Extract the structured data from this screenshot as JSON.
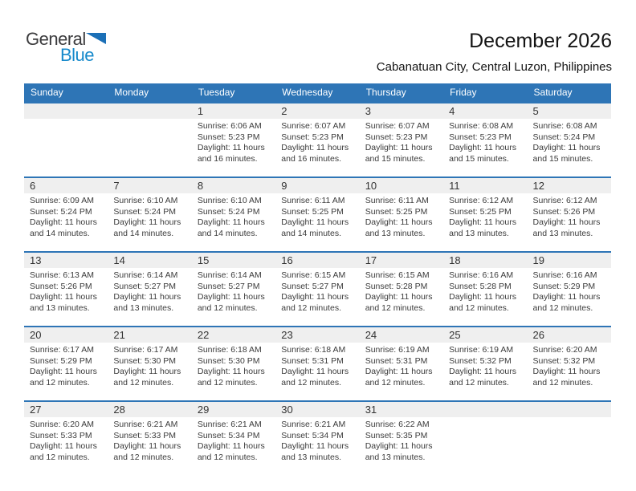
{
  "logo": {
    "general": "General",
    "blue": "Blue"
  },
  "header": {
    "title": "December 2026",
    "subtitle": "Cabanatuan City, Central Luzon, Philippines"
  },
  "colors": {
    "header_bar_blue": "#2E75B6",
    "week_divider_blue": "#2E75B6",
    "day_number_band_gray": "#EFEFEF",
    "logo_text_blue": "#1689CB",
    "logo_triangle_blue": "#1C70B7",
    "body_text": "#3B3B3B"
  },
  "calendar": {
    "weekdays": [
      "Sunday",
      "Monday",
      "Tuesday",
      "Wednesday",
      "Thursday",
      "Friday",
      "Saturday"
    ],
    "labels": {
      "sunrise": "Sunrise:",
      "sunset": "Sunset:",
      "daylight": "Daylight:"
    },
    "weeks": [
      [
        null,
        null,
        {
          "day": 1,
          "sunrise": "6:06 AM",
          "sunset": "5:23 PM",
          "daylight": "11 hours and 16 minutes."
        },
        {
          "day": 2,
          "sunrise": "6:07 AM",
          "sunset": "5:23 PM",
          "daylight": "11 hours and 16 minutes."
        },
        {
          "day": 3,
          "sunrise": "6:07 AM",
          "sunset": "5:23 PM",
          "daylight": "11 hours and 15 minutes."
        },
        {
          "day": 4,
          "sunrise": "6:08 AM",
          "sunset": "5:23 PM",
          "daylight": "11 hours and 15 minutes."
        },
        {
          "day": 5,
          "sunrise": "6:08 AM",
          "sunset": "5:24 PM",
          "daylight": "11 hours and 15 minutes."
        }
      ],
      [
        {
          "day": 6,
          "sunrise": "6:09 AM",
          "sunset": "5:24 PM",
          "daylight": "11 hours and 14 minutes."
        },
        {
          "day": 7,
          "sunrise": "6:10 AM",
          "sunset": "5:24 PM",
          "daylight": "11 hours and 14 minutes."
        },
        {
          "day": 8,
          "sunrise": "6:10 AM",
          "sunset": "5:24 PM",
          "daylight": "11 hours and 14 minutes."
        },
        {
          "day": 9,
          "sunrise": "6:11 AM",
          "sunset": "5:25 PM",
          "daylight": "11 hours and 14 minutes."
        },
        {
          "day": 10,
          "sunrise": "6:11 AM",
          "sunset": "5:25 PM",
          "daylight": "11 hours and 13 minutes."
        },
        {
          "day": 11,
          "sunrise": "6:12 AM",
          "sunset": "5:25 PM",
          "daylight": "11 hours and 13 minutes."
        },
        {
          "day": 12,
          "sunrise": "6:12 AM",
          "sunset": "5:26 PM",
          "daylight": "11 hours and 13 minutes."
        }
      ],
      [
        {
          "day": 13,
          "sunrise": "6:13 AM",
          "sunset": "5:26 PM",
          "daylight": "11 hours and 13 minutes."
        },
        {
          "day": 14,
          "sunrise": "6:14 AM",
          "sunset": "5:27 PM",
          "daylight": "11 hours and 13 minutes."
        },
        {
          "day": 15,
          "sunrise": "6:14 AM",
          "sunset": "5:27 PM",
          "daylight": "11 hours and 12 minutes."
        },
        {
          "day": 16,
          "sunrise": "6:15 AM",
          "sunset": "5:27 PM",
          "daylight": "11 hours and 12 minutes."
        },
        {
          "day": 17,
          "sunrise": "6:15 AM",
          "sunset": "5:28 PM",
          "daylight": "11 hours and 12 minutes."
        },
        {
          "day": 18,
          "sunrise": "6:16 AM",
          "sunset": "5:28 PM",
          "daylight": "11 hours and 12 minutes."
        },
        {
          "day": 19,
          "sunrise": "6:16 AM",
          "sunset": "5:29 PM",
          "daylight": "11 hours and 12 minutes."
        }
      ],
      [
        {
          "day": 20,
          "sunrise": "6:17 AM",
          "sunset": "5:29 PM",
          "daylight": "11 hours and 12 minutes."
        },
        {
          "day": 21,
          "sunrise": "6:17 AM",
          "sunset": "5:30 PM",
          "daylight": "11 hours and 12 minutes."
        },
        {
          "day": 22,
          "sunrise": "6:18 AM",
          "sunset": "5:30 PM",
          "daylight": "11 hours and 12 minutes."
        },
        {
          "day": 23,
          "sunrise": "6:18 AM",
          "sunset": "5:31 PM",
          "daylight": "11 hours and 12 minutes."
        },
        {
          "day": 24,
          "sunrise": "6:19 AM",
          "sunset": "5:31 PM",
          "daylight": "11 hours and 12 minutes."
        },
        {
          "day": 25,
          "sunrise": "6:19 AM",
          "sunset": "5:32 PM",
          "daylight": "11 hours and 12 minutes."
        },
        {
          "day": 26,
          "sunrise": "6:20 AM",
          "sunset": "5:32 PM",
          "daylight": "11 hours and 12 minutes."
        }
      ],
      [
        {
          "day": 27,
          "sunrise": "6:20 AM",
          "sunset": "5:33 PM",
          "daylight": "11 hours and 12 minutes."
        },
        {
          "day": 28,
          "sunrise": "6:21 AM",
          "sunset": "5:33 PM",
          "daylight": "11 hours and 12 minutes."
        },
        {
          "day": 29,
          "sunrise": "6:21 AM",
          "sunset": "5:34 PM",
          "daylight": "11 hours and 12 minutes."
        },
        {
          "day": 30,
          "sunrise": "6:21 AM",
          "sunset": "5:34 PM",
          "daylight": "11 hours and 13 minutes."
        },
        {
          "day": 31,
          "sunrise": "6:22 AM",
          "sunset": "5:35 PM",
          "daylight": "11 hours and 13 minutes."
        },
        null,
        null
      ]
    ]
  }
}
